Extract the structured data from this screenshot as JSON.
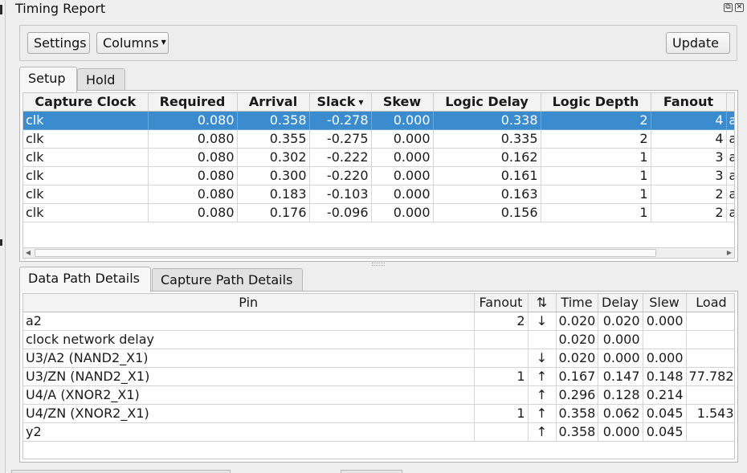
{
  "window": {
    "title": "Timing Report"
  },
  "toolbar": {
    "settings_label": "Settings",
    "columns_label": "Columns",
    "update_label": "Update"
  },
  "path_tabs": [
    {
      "label": "Setup",
      "active": true
    },
    {
      "label": "Hold",
      "active": false
    }
  ],
  "paths_table": {
    "columns": [
      "Capture Clock",
      "Required",
      "Arrival",
      "Slack",
      "Skew",
      "Logic Delay",
      "Logic Depth",
      "Fanout"
    ],
    "overflow_cell": "a",
    "sorted_column": "Slack",
    "rows": [
      {
        "capture_clock": "clk",
        "required": "0.080",
        "arrival": "0.358",
        "slack": "-0.278",
        "skew": "0.000",
        "logic_delay": "0.338",
        "logic_depth": "2",
        "fanout": "4",
        "selected": true
      },
      {
        "capture_clock": "clk",
        "required": "0.080",
        "arrival": "0.355",
        "slack": "-0.275",
        "skew": "0.000",
        "logic_delay": "0.335",
        "logic_depth": "2",
        "fanout": "4"
      },
      {
        "capture_clock": "clk",
        "required": "0.080",
        "arrival": "0.302",
        "slack": "-0.222",
        "skew": "0.000",
        "logic_delay": "0.162",
        "logic_depth": "1",
        "fanout": "3"
      },
      {
        "capture_clock": "clk",
        "required": "0.080",
        "arrival": "0.300",
        "slack": "-0.220",
        "skew": "0.000",
        "logic_delay": "0.161",
        "logic_depth": "1",
        "fanout": "3"
      },
      {
        "capture_clock": "clk",
        "required": "0.080",
        "arrival": "0.183",
        "slack": "-0.103",
        "skew": "0.000",
        "logic_delay": "0.163",
        "logic_depth": "1",
        "fanout": "2"
      },
      {
        "capture_clock": "clk",
        "required": "0.080",
        "arrival": "0.176",
        "slack": "-0.096",
        "skew": "0.000",
        "logic_delay": "0.156",
        "logic_depth": "1",
        "fanout": "2"
      }
    ]
  },
  "detail_tabs": [
    {
      "label": "Data Path Details",
      "active": true
    },
    {
      "label": "Capture Path Details",
      "active": false
    }
  ],
  "details_table": {
    "columns": [
      "Pin",
      "Fanout",
      "⇅",
      "Time",
      "Delay",
      "Slew",
      "Load"
    ],
    "rows": [
      {
        "pin": "a2",
        "fanout": "2",
        "edge": "↓",
        "time": "0.020",
        "delay": "0.020",
        "slew": "0.000",
        "load": ""
      },
      {
        "pin": "clock network delay",
        "fanout": "",
        "edge": "",
        "time": "0.020",
        "delay": "0.000",
        "slew": "",
        "load": ""
      },
      {
        "pin": "U3/A2 (NAND2_X1)",
        "fanout": "",
        "edge": "↓",
        "time": "0.020",
        "delay": "0.000",
        "slew": "0.000",
        "load": ""
      },
      {
        "pin": "U3/ZN (NAND2_X1)",
        "fanout": "1",
        "edge": "↑",
        "time": "0.167",
        "delay": "0.147",
        "slew": "0.148",
        "load": "77.782"
      },
      {
        "pin": "U4/A (XNOR2_X1)",
        "fanout": "",
        "edge": "↑",
        "time": "0.296",
        "delay": "0.128",
        "slew": "0.214",
        "load": ""
      },
      {
        "pin": "U4/ZN (XNOR2_X1)",
        "fanout": "1",
        "edge": "↑",
        "time": "0.358",
        "delay": "0.062",
        "slew": "0.045",
        "load": "1.543"
      },
      {
        "pin": "y2",
        "fanout": "",
        "edge": "↑",
        "time": "0.358",
        "delay": "0.000",
        "slew": "0.045",
        "load": ""
      }
    ]
  },
  "colors": {
    "selection": "#3a8ccf",
    "background": "#efefef"
  },
  "icons": {
    "float_button": "float-icon",
    "close_button": "close-icon",
    "scroll_left": "arrow-left-icon",
    "scroll_right": "arrow-right-icon"
  }
}
